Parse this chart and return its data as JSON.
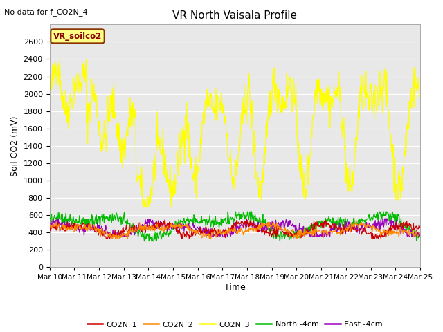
{
  "title": "VR North Vaisala Profile",
  "note": "No data for f_CO2N_4",
  "ylabel": "Soil CO2 (mV)",
  "xlabel": "Time",
  "legend_label": "VR_soilco2",
  "ylim": [
    0,
    2800
  ],
  "yticks": [
    0,
    200,
    400,
    600,
    800,
    1000,
    1200,
    1400,
    1600,
    1800,
    2000,
    2200,
    2400,
    2600
  ],
  "x_tick_labels": [
    "Mar 10",
    "Mar 11",
    "Mar 12",
    "Mar 13",
    "Mar 14",
    "Mar 15",
    "Mar 16",
    "Mar 17",
    "Mar 18",
    "Mar 19",
    "Mar 20",
    "Mar 21",
    "Mar 22",
    "Mar 23",
    "Mar 24",
    "Mar 25"
  ],
  "colors": {
    "CO2N_1": "#cc0000",
    "CO2N_2": "#ff8800",
    "CO2N_3": "#ffff00",
    "North_4cm": "#00bb00",
    "East_4cm": "#9900bb"
  },
  "background_color": "#e8e8e8",
  "fig_width": 6.4,
  "fig_height": 4.8,
  "dpi": 100
}
